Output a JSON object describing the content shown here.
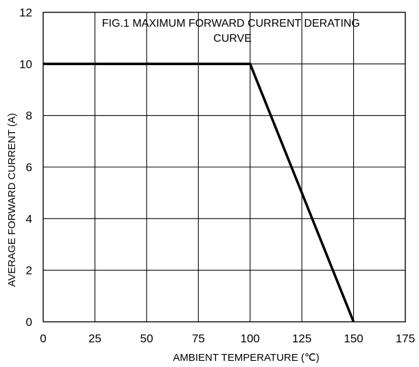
{
  "chart_data": {
    "type": "line",
    "title": "FIG.1 MAXIMUM FORWARD CURRENT DERATING CURVE",
    "title_lines": [
      "FIG.1 MAXIMUM FORWARD CURRENT DERATING",
      "CURVE"
    ],
    "xlabel": "AMBIENT TEMPERATURE (℃)",
    "ylabel": "AVERAGE FORWARD CURRENT (A)",
    "xlim": [
      0,
      175
    ],
    "ylim": [
      0,
      12
    ],
    "x_ticks": [
      0,
      25,
      50,
      75,
      100,
      125,
      150,
      175
    ],
    "x_tick_labels": [
      "0",
      "25",
      "50",
      "75",
      "100",
      "125",
      "150",
      "175"
    ],
    "y_ticks": [
      0,
      2,
      4,
      6,
      8,
      10,
      12
    ],
    "y_tick_labels": [
      "0",
      "2",
      "4",
      "6",
      "8",
      "10",
      "12"
    ],
    "grid": true,
    "legend": "none",
    "series": [
      {
        "x": [
          0,
          100,
          150
        ],
        "y": [
          10,
          10,
          0
        ],
        "color": "#000000"
      }
    ]
  }
}
